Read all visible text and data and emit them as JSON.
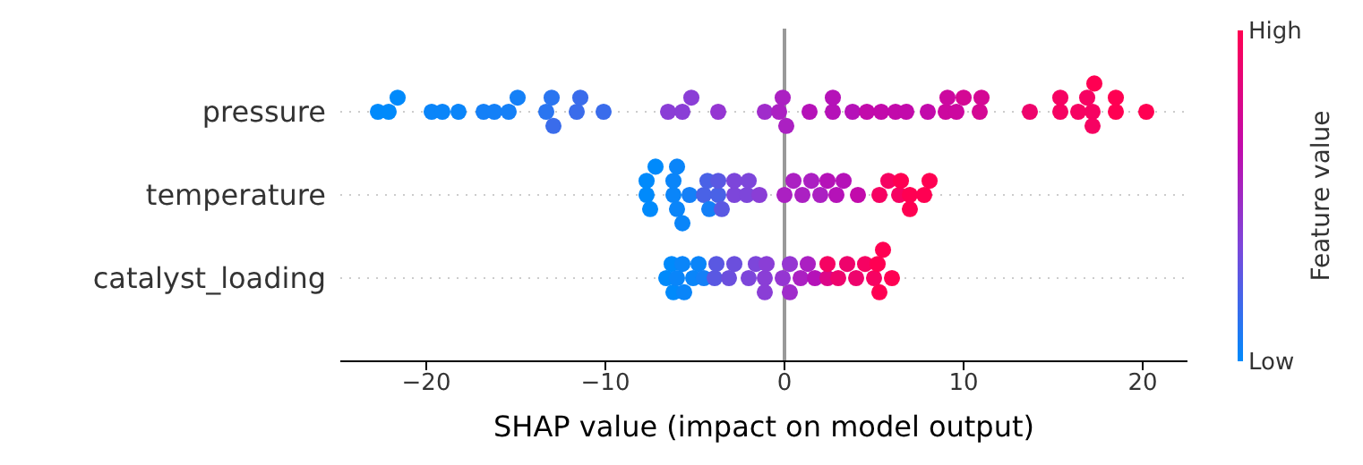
{
  "chart_data": {
    "type": "scatter",
    "orientation": "horizontal",
    "xlabel": "SHAP value (impact on model output)",
    "clabel": "Feature value",
    "annotations": [
      "Low",
      "High"
    ],
    "legend": false,
    "categories": [
      "pressure",
      "temperature",
      "catalyst_loading"
    ],
    "xlim": [
      -24.8,
      22.5
    ],
    "xticks": [
      -20,
      -10,
      0,
      10,
      20
    ],
    "grid": "y",
    "marker": "circle",
    "ref_lines": [
      {
        "axis": "x",
        "value": 0,
        "color": "#999999"
      }
    ],
    "series": [
      {
        "x": [
          "pressure",
          "pressure",
          "pressure",
          "pressure",
          "pressure",
          "pressure",
          "pressure",
          "pressure",
          "pressure",
          "pressure",
          "pressure",
          "pressure",
          "pressure",
          "pressure",
          "pressure",
          "pressure",
          "pressure",
          "pressure",
          "pressure",
          "pressure",
          "pressure",
          "pressure",
          "pressure",
          "pressure",
          "pressure",
          "pressure",
          "pressure",
          "pressure",
          "pressure",
          "pressure",
          "pressure",
          "pressure",
          "pressure",
          "pressure",
          "pressure",
          "pressure",
          "pressure",
          "pressure",
          "pressure",
          "pressure",
          "pressure",
          "pressure",
          "pressure",
          "pressure",
          "pressure",
          "pressure",
          "pressure",
          "pressure",
          "pressure",
          "pressure"
        ],
        "values": [
          -22.7,
          -22.1,
          -21.6,
          -19.7,
          -19.1,
          -18.2,
          -16.8,
          -16.2,
          -15.4,
          -14.9,
          -13.3,
          -13.0,
          -12.9,
          -11.6,
          -11.4,
          -10.1,
          -6.5,
          -5.7,
          -5.2,
          -3.7,
          -1.1,
          -0.3,
          -0.1,
          0.1,
          1.4,
          2.7,
          2.7,
          3.8,
          4.6,
          5.4,
          6.2,
          6.8,
          8.0,
          9.0,
          9.1,
          9.6,
          10.0,
          10.9,
          11.0,
          13.7,
          15.4,
          15.4,
          16.4,
          16.9,
          17.2,
          17.2,
          17.3,
          18.5,
          18.5,
          20.2
        ],
        "colors": [
          "#008afb",
          "#008afb",
          "#008afb",
          "#0a85f9",
          "#0a85f9",
          "#0a85f9",
          "#1480f7",
          "#1480f7",
          "#1480f7",
          "#1480f7",
          "#2a75f0",
          "#2a75f0",
          "#3a6ceb",
          "#3a6ceb",
          "#3a6ceb",
          "#3a6ceb",
          "#8a3ed6",
          "#8a3ed6",
          "#8a3ed6",
          "#9536d2",
          "#a02ccb",
          "#ab20c2",
          "#ab20c2",
          "#ab20c2",
          "#b512b8",
          "#b512b8",
          "#b512b8",
          "#b512b8",
          "#c20aab",
          "#c20aab",
          "#c20aab",
          "#c20aab",
          "#c20aab",
          "#cc089f",
          "#cc089f",
          "#cc089f",
          "#d40894",
          "#d40894",
          "#d40894",
          "#ee036c",
          "#f60262",
          "#f60262",
          "#f60262",
          "#f60262",
          "#f60262",
          "#f60262",
          "#ff0052",
          "#ff0052",
          "#ff0052",
          "#ff0052"
        ]
      },
      {
        "x": [
          "temperature",
          "temperature",
          "temperature",
          "temperature",
          "temperature",
          "temperature",
          "temperature",
          "temperature",
          "temperature",
          "temperature",
          "temperature",
          "temperature",
          "temperature",
          "temperature",
          "temperature",
          "temperature",
          "temperature",
          "temperature",
          "temperature",
          "temperature",
          "temperature",
          "temperature",
          "temperature",
          "temperature",
          "temperature",
          "temperature",
          "temperature",
          "temperature",
          "temperature",
          "temperature",
          "temperature",
          "temperature",
          "temperature",
          "temperature",
          "temperature",
          "temperature",
          "temperature",
          "temperature"
        ],
        "values": [
          -7.7,
          -7.7,
          -7.5,
          -7.2,
          -6.2,
          -6.2,
          -6.0,
          -6.0,
          -5.7,
          -5.3,
          -4.5,
          -4.3,
          -4.2,
          -3.7,
          -3.7,
          -3.5,
          -2.8,
          -2.8,
          -2.1,
          -2.0,
          -1.4,
          0.0,
          0.5,
          1.0,
          1.5,
          2.0,
          2.4,
          2.9,
          3.3,
          4.1,
          5.3,
          5.8,
          6.4,
          6.5,
          7.0,
          7.0,
          7.8,
          8.1
        ],
        "colors": [
          "#008afb",
          "#008afb",
          "#008afb",
          "#008afb",
          "#0a85f9",
          "#0a85f9",
          "#0a85f9",
          "#0a85f9",
          "#0a85f9",
          "#1480f7",
          "#4a62e6",
          "#4a62e6",
          "#1480f7",
          "#4a62e6",
          "#5a58e2",
          "#5a58e2",
          "#7d46da",
          "#7d46da",
          "#7d46da",
          "#7d46da",
          "#8a3ed6",
          "#ab20c2",
          "#ab20c2",
          "#ab20c2",
          "#ab20c2",
          "#ab20c2",
          "#b512b8",
          "#b512b8",
          "#b512b8",
          "#c20aab",
          "#f60262",
          "#f60262",
          "#f60262",
          "#ff0052",
          "#ff0052",
          "#ff0052",
          "#ff0052",
          "#ff0052"
        ]
      },
      {
        "x": [
          "catalyst_loading",
          "catalyst_loading",
          "catalyst_loading",
          "catalyst_loading",
          "catalyst_loading",
          "catalyst_loading",
          "catalyst_loading",
          "catalyst_loading",
          "catalyst_loading",
          "catalyst_loading",
          "catalyst_loading",
          "catalyst_loading",
          "catalyst_loading",
          "catalyst_loading",
          "catalyst_loading",
          "catalyst_loading",
          "catalyst_loading",
          "catalyst_loading",
          "catalyst_loading",
          "catalyst_loading",
          "catalyst_loading",
          "catalyst_loading",
          "catalyst_loading",
          "catalyst_loading",
          "catalyst_loading",
          "catalyst_loading",
          "catalyst_loading",
          "catalyst_loading",
          "catalyst_loading",
          "catalyst_loading",
          "catalyst_loading",
          "catalyst_loading",
          "catalyst_loading",
          "catalyst_loading",
          "catalyst_loading"
        ],
        "values": [
          -6.6,
          -6.3,
          -6.2,
          -6.0,
          -5.7,
          -5.6,
          -5.1,
          -4.8,
          -4.5,
          -3.9,
          -3.8,
          -3.1,
          -2.8,
          -2.0,
          -1.6,
          -1.1,
          -1.1,
          -1.0,
          -0.1,
          0.3,
          0.3,
          0.9,
          1.3,
          1.7,
          2.4,
          2.4,
          3.0,
          3.5,
          4.0,
          4.5,
          5.0,
          5.2,
          5.3,
          5.5,
          6.0
        ],
        "colors": [
          "#008afb",
          "#008afb",
          "#008afb",
          "#0a85f9",
          "#0a85f9",
          "#0a85f9",
          "#0a85f9",
          "#0a85f9",
          "#1480f7",
          "#5a58e2",
          "#5a58e2",
          "#6b4fdd",
          "#6b4fdd",
          "#7d46da",
          "#7d46da",
          "#8a3ed6",
          "#8a3ed6",
          "#8a3ed6",
          "#9536d2",
          "#9536d2",
          "#a02ccb",
          "#ab20c2",
          "#ab20c2",
          "#b512b8",
          "#dc0688",
          "#f60262",
          "#ee036c",
          "#ee036c",
          "#ee036c",
          "#f60262",
          "#f60262",
          "#ff0052",
          "#ff0052",
          "#ff0052",
          "#ff0052"
        ]
      }
    ]
  }
}
